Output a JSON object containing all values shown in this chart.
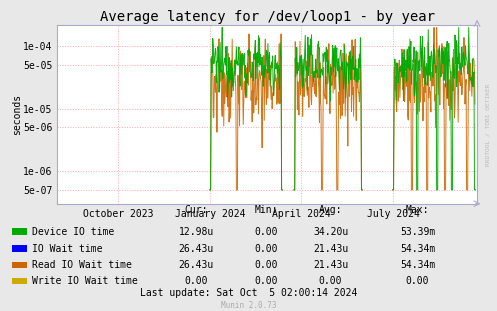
{
  "title": "Average latency for /dev/loop1 - by year",
  "ylabel": "seconds",
  "background_color": "#e8e8e8",
  "plot_bg_color": "#ffffff",
  "grid_color": "#ffaaaa",
  "x_tick_labels": [
    "October 2023",
    "January 2024",
    "April 2024",
    "July 2024"
  ],
  "y_ticks": [
    5e-07,
    1e-06,
    5e-06,
    1e-05,
    5e-05,
    0.0001
  ],
  "y_tick_labels": [
    "5e-07",
    "1e-06",
    "5e-06",
    "1e-05",
    "5e-05",
    "1e-04"
  ],
  "ylim_low": 3e-07,
  "ylim_high": 0.00022,
  "green_color": "#00aa00",
  "orange_color": "#cc6600",
  "blue_color": "#0000ff",
  "yellow_color": "#ccaa00",
  "legend_items": [
    {
      "label": "Device IO time",
      "color": "#00aa00",
      "cur": "12.98u",
      "min": "0.00",
      "avg": "34.20u",
      "max": "53.39m"
    },
    {
      "label": "IO Wait time",
      "color": "#0000ff",
      "cur": "26.43u",
      "min": "0.00",
      "avg": "21.43u",
      "max": "54.34m"
    },
    {
      "label": "Read IO Wait time",
      "color": "#cc6600",
      "cur": "26.43u",
      "min": "0.00",
      "avg": "21.43u",
      "max": "54.34m"
    },
    {
      "label": "Write IO Wait time",
      "color": "#ccaa00",
      "cur": "0.00",
      "min": "0.00",
      "avg": "0.00",
      "max": "0.00"
    }
  ],
  "footer": "Last update: Sat Oct  5 02:00:14 2024",
  "munin_version": "Munin 2.0.73",
  "rrdtool_label": "RRDTOOL / TOBI OETIKER",
  "title_fontsize": 10,
  "axis_fontsize": 7,
  "legend_fontsize": 7
}
